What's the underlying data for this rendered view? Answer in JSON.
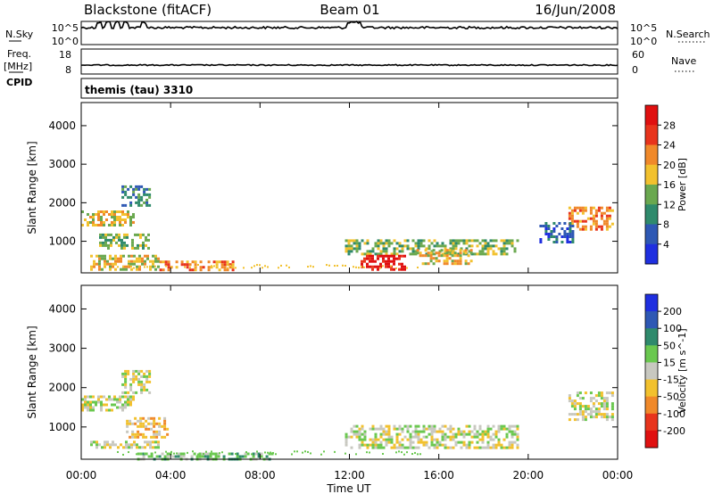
{
  "header": {
    "site": "Blackstone (fitACF)",
    "beam": "Beam 01",
    "date": "16/Jun/2008",
    "program": "themis (tau) 3310"
  },
  "strip_labels": {
    "nsky": "N.Sky",
    "freq": "Freq.",
    "freq_unit": "[MHz]",
    "cpid": "CPID",
    "nsearch": "N.Search",
    "nave": "Nave",
    "nsky_ticks": [
      "10^5",
      "10^0"
    ],
    "nsearch_ticks": [
      "10^5",
      "10^0"
    ],
    "freq_ticks": [
      "18",
      "8"
    ],
    "nave_ticks": [
      "60",
      "0"
    ]
  },
  "chart_data": [
    {
      "type": "heatmap",
      "name_panel": "power",
      "xlabel": "Time UT",
      "ylabel": "Slant Range [km]",
      "x_ticks": [
        "00:00",
        "04:00",
        "08:00",
        "12:00",
        "16:00",
        "20:00",
        "00:00"
      ],
      "x_range_hours": [
        0,
        24
      ],
      "y_ticks": [
        1000,
        2000,
        3000,
        4000
      ],
      "y_range_km": [
        180,
        4600
      ],
      "colorbar": {
        "label": "Power [dB]",
        "ticks": [
          "4",
          "8",
          "12",
          "16",
          "20",
          "24",
          "28"
        ],
        "colors": [
          "#1f2fe0",
          "#2e58b4",
          "#2f8a6c",
          "#6aa84f",
          "#f2c12e",
          "#f0892a",
          "#e8341c",
          "#e01010"
        ]
      },
      "regions": [
        {
          "t": [
            0.0,
            2.3
          ],
          "r": [
            1400,
            1800
          ],
          "level": 4
        },
        {
          "t": [
            0.8,
            3.0
          ],
          "r": [
            800,
            1200
          ],
          "level": 3
        },
        {
          "t": [
            1.8,
            3.0
          ],
          "r": [
            1900,
            2450
          ],
          "level": 2
        },
        {
          "t": [
            0.4,
            3.5
          ],
          "r": [
            300,
            650
          ],
          "level": 4
        },
        {
          "t": [
            3.5,
            6.8
          ],
          "r": [
            250,
            500
          ],
          "level": 5
        },
        {
          "t": [
            11.8,
            19.5
          ],
          "r": [
            650,
            1050
          ],
          "level": 3
        },
        {
          "t": [
            12.5,
            14.5
          ],
          "r": [
            300,
            650
          ],
          "level": 7
        },
        {
          "t": [
            15.0,
            17.5
          ],
          "r": [
            450,
            800
          ],
          "level": 4
        },
        {
          "t": [
            21.8,
            23.8
          ],
          "r": [
            1300,
            1900
          ],
          "level": 5
        },
        {
          "t": [
            20.5,
            22.0
          ],
          "r": [
            1000,
            1500
          ],
          "level": 1
        }
      ]
    },
    {
      "type": "heatmap",
      "name_panel": "velocity",
      "xlabel": "Time UT",
      "ylabel": "Slant Range [km]",
      "x_ticks": [
        "00:00",
        "04:00",
        "08:00",
        "12:00",
        "16:00",
        "20:00",
        "00:00"
      ],
      "x_range_hours": [
        0,
        24
      ],
      "y_ticks": [
        1000,
        2000,
        3000,
        4000
      ],
      "y_range_km": [
        180,
        4600
      ],
      "colorbar": {
        "label": "Velocity [m s^-1]",
        "ticks": [
          "200",
          "100",
          "50",
          "15",
          "-15",
          "-50",
          "-100",
          "-200"
        ],
        "colors": [
          "#1f2fe0",
          "#2e58b4",
          "#2f8a6c",
          "#6ac84f",
          "#c8c8c0",
          "#f2c12e",
          "#f0892a",
          "#e8341c",
          "#e01010"
        ]
      },
      "regions": [
        {
          "t": [
            0.0,
            2.3
          ],
          "r": [
            1400,
            1800
          ],
          "level": 4
        },
        {
          "t": [
            2.0,
            3.8
          ],
          "r": [
            750,
            1250
          ],
          "level": 5
        },
        {
          "t": [
            1.8,
            3.0
          ],
          "r": [
            1900,
            2450
          ],
          "level": 4
        },
        {
          "t": [
            0.4,
            3.5
          ],
          "r": [
            450,
            650
          ],
          "level": 4
        },
        {
          "t": [
            2.5,
            8.5
          ],
          "r": [
            200,
            350
          ],
          "level": 3
        },
        {
          "t": [
            11.8,
            19.5
          ],
          "r": [
            500,
            1050
          ],
          "level": 4
        },
        {
          "t": [
            21.8,
            23.8
          ],
          "r": [
            1200,
            1900
          ],
          "level": 4
        }
      ]
    }
  ]
}
